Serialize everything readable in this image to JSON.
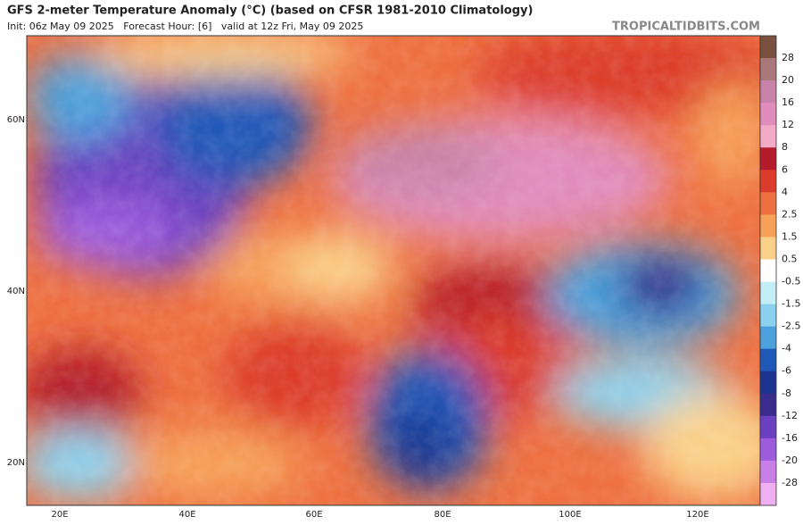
{
  "header": {
    "title": "GFS 2-meter Temperature Anomaly (°C) (based on CFSR 1981-2010 Climatology)",
    "subtitle": "Init: 06z May 09 2025   Forecast Hour: [6]   valid at 12z Fri, May 09 2025",
    "source": "TROPICALTIDBITS.COM"
  },
  "map": {
    "latitude_labels": [
      "60N",
      "40N",
      "20N"
    ],
    "longitude_labels": [
      "20E",
      "40E",
      "60E",
      "80E",
      "100E",
      "120E"
    ]
  },
  "colorbar": {
    "labels": [
      28,
      20,
      16,
      12,
      8,
      6,
      4,
      2.5,
      1.5,
      0.5,
      -0.5,
      -1.5,
      -2.5,
      -4,
      -6,
      -8,
      -12,
      -16,
      -20,
      -28
    ],
    "colors": [
      "#7a5040",
      "#a8787a",
      "#c884a8",
      "#e08cbc",
      "#f2aac8",
      "#b41c2c",
      "#dc3c2c",
      "#ee7040",
      "#f6a058",
      "#fad088",
      "#ffffff",
      "#c4eef6",
      "#8cd2ee",
      "#4ca0dc",
      "#2058b8",
      "#1c3490",
      "#3a2c8c",
      "#6a40c0",
      "#9c5cdc",
      "#c880e8",
      "#eeb0f0"
    ]
  }
}
